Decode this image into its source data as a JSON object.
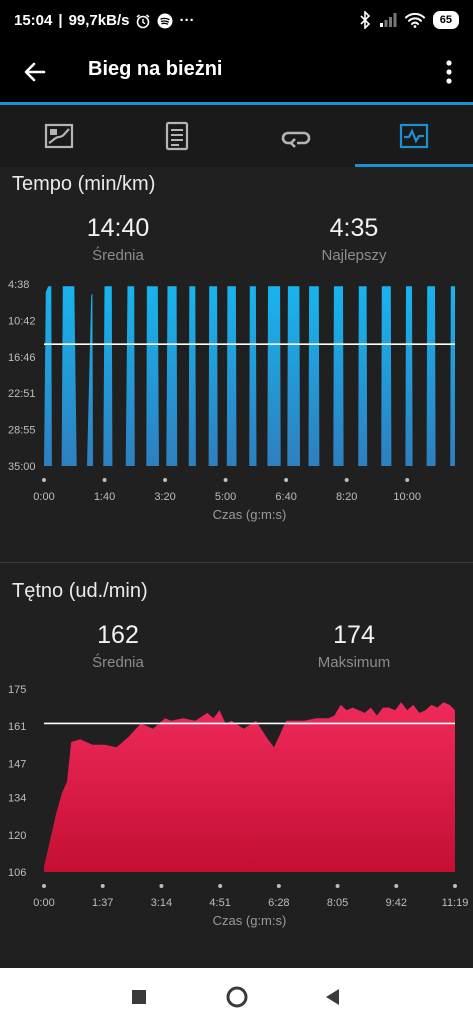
{
  "status_bar": {
    "time": "15:04",
    "net_speed": "99,7kB/s",
    "alarm_icon": "alarm-icon",
    "spotify_icon": "spotify-icon",
    "more": "···",
    "battery": "65"
  },
  "app_bar": {
    "title": "Bieg na bieżni"
  },
  "tabs": [
    {
      "icon": "activity-map-icon",
      "active": false
    },
    {
      "icon": "details-list-icon",
      "active": false
    },
    {
      "icon": "laps-loop-icon",
      "active": false
    },
    {
      "icon": "charts-icon",
      "active": true
    }
  ],
  "pace": {
    "title": "Tempo (min/km)",
    "avg_value": "14:40",
    "avg_label": "Średnia",
    "best_value": "4:35",
    "best_label": "Najlepszy"
  },
  "hr": {
    "title": "Tętno (ud./min)",
    "avg_value": "162",
    "avg_label": "Średnia",
    "max_value": "174",
    "max_label": "Maksimum"
  },
  "chart_data": [
    {
      "type": "area",
      "title": "Tempo (min/km)",
      "xlabel": "Czas (g:m:s)",
      "ylabel": "",
      "y_inverted": true,
      "y_ticks": [
        "4:38",
        "10:42",
        "16:46",
        "22:51",
        "28:55",
        "35:00"
      ],
      "y_tick_minutes": [
        4.63,
        10.7,
        16.77,
        22.85,
        28.92,
        35.0
      ],
      "x_ticks": [
        "0:00",
        "1:40",
        "3:20",
        "5:00",
        "6:40",
        "8:20",
        "10:00"
      ],
      "x_tick_seconds": [
        0,
        100,
        200,
        300,
        400,
        500,
        600
      ],
      "xlim_seconds": [
        0,
        679
      ],
      "ylim_minutes": [
        4.63,
        35.0
      ],
      "average_minutes": 14.67,
      "color": "#1da9e3",
      "x_seconds": [
        0,
        3,
        7,
        12,
        13,
        29,
        31,
        50,
        54,
        71,
        78,
        80,
        81,
        98,
        100,
        112,
        113,
        135,
        138,
        149,
        150,
        169,
        170,
        188,
        190,
        202,
        204,
        219,
        220,
        239,
        240,
        250,
        251,
        272,
        273,
        286,
        287,
        302,
        303,
        317,
        318,
        339,
        340,
        350,
        351,
        369,
        370,
        390,
        391,
        402,
        403,
        422,
        423,
        437,
        438,
        454,
        455,
        478,
        479,
        494,
        495,
        519,
        520,
        533,
        534,
        557,
        558,
        573,
        574,
        597,
        598,
        608,
        609,
        632,
        633,
        646,
        647,
        671,
        672,
        679
      ],
      "y_minutes": [
        35,
        6.0,
        5.0,
        5.0,
        35,
        35,
        5.0,
        5.0,
        35,
        35,
        6.5,
        6.2,
        35,
        35,
        5.0,
        5.0,
        35,
        35,
        5.0,
        5.0,
        35,
        35,
        5.0,
        5.0,
        35,
        35,
        5.0,
        5.0,
        35,
        35,
        5.0,
        5.0,
        35,
        35,
        5.0,
        5.0,
        35,
        35,
        5.0,
        5.0,
        35,
        35,
        5.0,
        5.0,
        35,
        35,
        5.0,
        5.0,
        35,
        35,
        5.0,
        5.0,
        35,
        35,
        5.0,
        5.0,
        35,
        35,
        5.0,
        5.0,
        35,
        35,
        5.0,
        5.0,
        35,
        35,
        5.0,
        5.0,
        35,
        35,
        5.0,
        5.0,
        35,
        35,
        5.0,
        5.0,
        35,
        35,
        5.0,
        5.0
      ]
    },
    {
      "type": "area",
      "title": "Tętno (ud./min)",
      "xlabel": "Czas (g:m:s)",
      "ylabel": "",
      "y_ticks": [
        "175",
        "161",
        "147",
        "134",
        "120",
        "106"
      ],
      "y_tick_values": [
        175,
        161,
        147,
        134,
        120,
        106
      ],
      "x_ticks": [
        "0:00",
        "1:37",
        "3:14",
        "4:51",
        "6:28",
        "8:05",
        "9:42",
        "11:19"
      ],
      "x_tick_seconds": [
        0,
        97,
        194,
        291,
        388,
        485,
        582,
        679
      ],
      "xlim_seconds": [
        0,
        679
      ],
      "ylim": [
        106,
        175
      ],
      "average": 162,
      "color": "#e0194a",
      "x_seconds": [
        0,
        5,
        10,
        20,
        30,
        38,
        45,
        60,
        80,
        100,
        120,
        140,
        160,
        170,
        180,
        200,
        210,
        230,
        250,
        270,
        280,
        290,
        300,
        310,
        330,
        350,
        370,
        380,
        390,
        400,
        410,
        430,
        450,
        470,
        480,
        490,
        500,
        510,
        530,
        540,
        550,
        560,
        570,
        580,
        590,
        600,
        610,
        620,
        630,
        640,
        650,
        660,
        670,
        679
      ],
      "y_values": [
        108,
        113,
        118,
        128,
        136,
        140,
        155,
        156,
        154,
        154,
        153,
        157,
        162,
        161,
        160,
        164,
        163,
        164,
        163,
        166,
        164,
        167,
        162,
        163,
        160,
        163,
        156,
        153,
        158,
        163,
        163,
        163,
        164,
        164,
        165,
        169,
        167,
        168,
        166,
        168,
        165,
        168,
        168,
        167,
        170,
        167,
        169,
        166,
        167,
        169,
        168,
        170,
        169,
        167
      ]
    }
  ]
}
